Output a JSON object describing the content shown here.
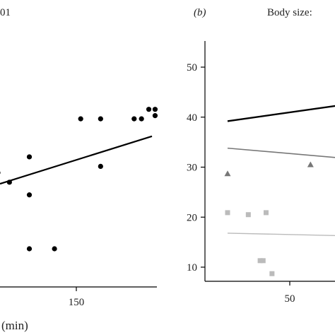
{
  "chart_data": [
    {
      "type": "scatter",
      "panel_label": "",
      "title_fragment": "01",
      "xlabel": "(min)",
      "ylabel": "",
      "xticks": [
        150
      ],
      "yticks": [],
      "xlim": [
        75,
        225
      ],
      "ylim": [
        5,
        62
      ],
      "points": [
        {
          "x": 73,
          "y": 37
        },
        {
          "x": 84,
          "y": 34
        },
        {
          "x": 103,
          "y": 42
        },
        {
          "x": 103,
          "y": 30
        },
        {
          "x": 103,
          "y": 13
        },
        {
          "x": 127,
          "y": 13
        },
        {
          "x": 152,
          "y": 54
        },
        {
          "x": 171,
          "y": 54
        },
        {
          "x": 171,
          "y": 39
        },
        {
          "x": 203,
          "y": 54
        },
        {
          "x": 210,
          "y": 54
        },
        {
          "x": 217,
          "y": 57
        },
        {
          "x": 223,
          "y": 57
        },
        {
          "x": 223,
          "y": 55
        }
      ],
      "fit_line": {
        "x": [
          75,
          220
        ],
        "y": [
          33.5,
          48.5
        ]
      }
    },
    {
      "type": "scatter",
      "panel_label": "(b)",
      "title_fragment": "Body size:",
      "xlabel": "",
      "ylabel": "",
      "xticks": [
        50
      ],
      "yticks": [
        10,
        20,
        30,
        40,
        50
      ],
      "xlim": [
        21,
        66
      ],
      "ylim": [
        5,
        61
      ],
      "series": [
        {
          "marker": "circle",
          "color": "#000000",
          "points": [],
          "fit_line": {
            "x": [
              29,
              66
            ],
            "y": [
              39.2,
              42.3
            ]
          }
        },
        {
          "marker": "triangle",
          "color": "#777777",
          "points": [
            {
              "x": 29,
              "y": 28.7
            },
            {
              "x": 57,
              "y": 30.5
            }
          ],
          "fit_line": {
            "x": [
              29,
              66
            ],
            "y": [
              33.8,
              31.9
            ]
          }
        },
        {
          "marker": "square",
          "color": "#bbbbbb",
          "points": [
            {
              "x": 29,
              "y": 20.9
            },
            {
              "x": 36,
              "y": 20.5
            },
            {
              "x": 42,
              "y": 20.9
            },
            {
              "x": 40,
              "y": 11.3
            },
            {
              "x": 41,
              "y": 11.3
            },
            {
              "x": 44,
              "y": 8.7
            }
          ],
          "fit_line": {
            "x": [
              29,
              66
            ],
            "y": [
              16.8,
              16.3
            ]
          }
        }
      ]
    }
  ]
}
